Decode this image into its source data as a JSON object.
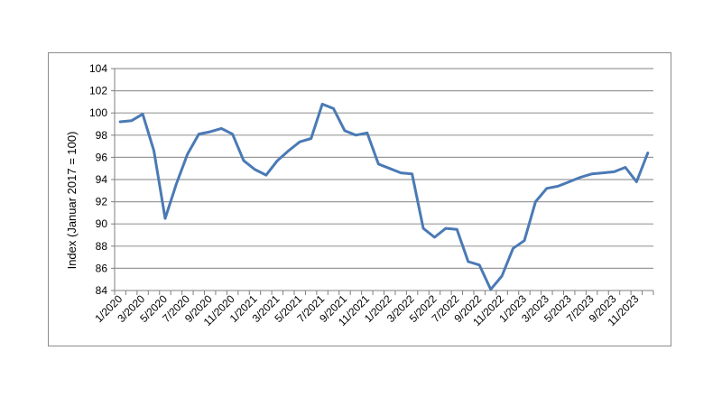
{
  "chart_data": {
    "type": "line",
    "title": "",
    "xlabel": "",
    "ylabel": "Index (Januar 2017 = 100)",
    "ylim": [
      84,
      104
    ],
    "yticks": [
      84,
      86,
      88,
      90,
      92,
      94,
      96,
      98,
      100,
      102,
      104
    ],
    "grid": "horizontal",
    "line_color": "#4a7ab5",
    "x": [
      "1/2020",
      "2/2020",
      "3/2020",
      "4/2020",
      "5/2020",
      "6/2020",
      "7/2020",
      "8/2020",
      "9/2020",
      "10/2020",
      "11/2020",
      "12/2020",
      "1/2021",
      "2/2021",
      "3/2021",
      "4/2021",
      "5/2021",
      "6/2021",
      "7/2021",
      "8/2021",
      "9/2021",
      "10/2021",
      "11/2021",
      "12/2021",
      "1/2022",
      "2/2022",
      "3/2022",
      "4/2022",
      "5/2022",
      "6/2022",
      "7/2022",
      "8/2022",
      "9/2022",
      "10/2022",
      "11/2022",
      "12/2022",
      "1/2023",
      "2/2023",
      "3/2023",
      "4/2023",
      "5/2023",
      "6/2023",
      "7/2023",
      "8/2023",
      "9/2023",
      "10/2023",
      "11/2023",
      "12/2023"
    ],
    "xtick_labels": [
      "1/2020",
      "3/2020",
      "5/2020",
      "7/2020",
      "9/2020",
      "11/2020",
      "1/2021",
      "3/2021",
      "5/2021",
      "7/2021",
      "9/2021",
      "11/2021",
      "1/2022",
      "3/2022",
      "5/2022",
      "7/2022",
      "9/2022",
      "11/2022",
      "1/2023",
      "3/2023",
      "5/2023",
      "7/2023",
      "9/2023",
      "11/2023"
    ],
    "series": [
      {
        "values": [
          99.2,
          99.3,
          99.9,
          96.6,
          90.5,
          93.6,
          96.3,
          98.1,
          98.3,
          98.6,
          98.1,
          95.7,
          94.9,
          94.4,
          95.7,
          96.6,
          97.4,
          97.7,
          100.8,
          100.4,
          98.4,
          98.0,
          98.2,
          95.4,
          95.0,
          94.6,
          94.5,
          89.6,
          88.8,
          89.6,
          89.5,
          86.6,
          86.3,
          84.1,
          85.3,
          87.8,
          88.5,
          92.0,
          93.2,
          93.4,
          93.8,
          94.2,
          94.5,
          94.6,
          94.7,
          95.1,
          93.8,
          96.4
        ]
      }
    ]
  }
}
